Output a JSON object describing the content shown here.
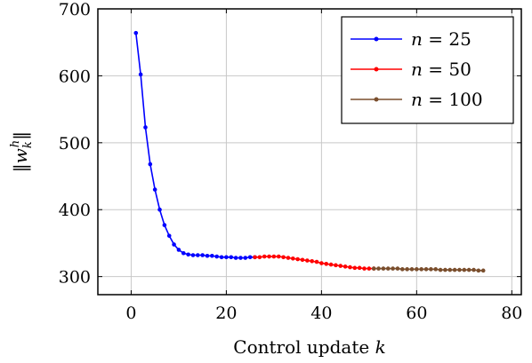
{
  "chart_data": {
    "type": "line",
    "xlabel": "Control update k",
    "ylabel": "‖w_k^h‖",
    "xlim": [
      -7,
      82
    ],
    "ylim": [
      273,
      700
    ],
    "xticks": [
      0,
      20,
      40,
      60,
      80
    ],
    "yticks": [
      300,
      400,
      500,
      600,
      700
    ],
    "grid": true,
    "legend_position": "top-right",
    "series": [
      {
        "name": "n = 25",
        "color": "#0000ff",
        "x": [
          1,
          2,
          3,
          4,
          5,
          6,
          7,
          8,
          9,
          10,
          11,
          12,
          13,
          14,
          15,
          16,
          17,
          18,
          19,
          20,
          21,
          22,
          23,
          24,
          25,
          26
        ],
        "y": [
          664,
          602,
          523,
          468,
          430,
          400,
          377,
          361,
          348,
          340,
          335,
          333,
          332,
          332,
          332,
          331,
          331,
          330,
          329,
          329,
          329,
          328,
          328,
          328,
          329,
          329
        ]
      },
      {
        "name": "n = 50",
        "color": "#ff0000",
        "x": [
          26,
          27,
          28,
          29,
          30,
          31,
          32,
          33,
          34,
          35,
          36,
          37,
          38,
          39,
          40,
          41,
          42,
          43,
          44,
          45,
          46,
          47,
          48,
          49,
          50,
          51
        ],
        "y": [
          329,
          329,
          330,
          330,
          330,
          330,
          329,
          328,
          327,
          326,
          325,
          324,
          323,
          322,
          320,
          319,
          318,
          317,
          316,
          315,
          314,
          313,
          313,
          312,
          312,
          312
        ]
      },
      {
        "name": "n = 100",
        "color": "#7a4e2d",
        "x": [
          51,
          52,
          53,
          54,
          55,
          56,
          57,
          58,
          59,
          60,
          61,
          62,
          63,
          64,
          65,
          66,
          67,
          68,
          69,
          70,
          71,
          72,
          73,
          74
        ],
        "y": [
          312,
          312,
          312,
          312,
          312,
          312,
          311,
          311,
          311,
          311,
          311,
          311,
          311,
          311,
          310,
          310,
          310,
          310,
          310,
          310,
          310,
          310,
          309,
          309
        ]
      }
    ]
  }
}
